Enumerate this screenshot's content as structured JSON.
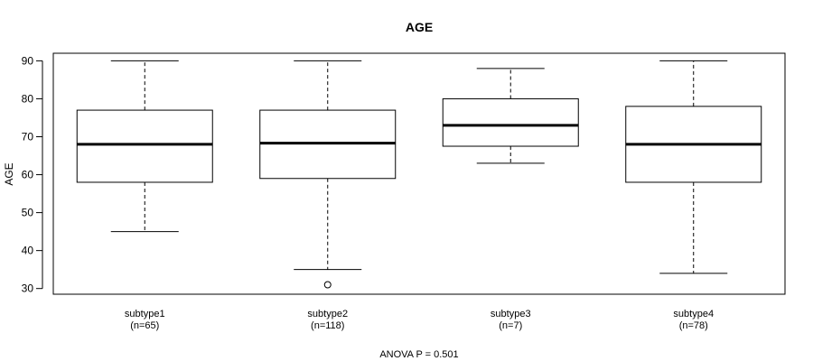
{
  "chart_data": {
    "type": "boxplot",
    "title": "AGE",
    "xlabel": "",
    "ylabel": "AGE",
    "ylim": [
      28.5,
      92
    ],
    "yticks": [
      30,
      40,
      50,
      60,
      70,
      80,
      90
    ],
    "ytick_labels": [
      "30",
      "40",
      "50",
      "60",
      "70",
      "80",
      "90"
    ],
    "footnote": "ANOVA P = 0.501",
    "groups": [
      {
        "name": "subtype1",
        "n_label": "(n=65)",
        "whisker_low": 45,
        "q1": 58,
        "median": 68,
        "q3": 77,
        "whisker_high": 90,
        "outliers": []
      },
      {
        "name": "subtype2",
        "n_label": "(n=118)",
        "whisker_low": 35,
        "q1": 59,
        "median": 68.3,
        "q3": 77,
        "whisker_high": 90,
        "outliers": [
          31
        ]
      },
      {
        "name": "subtype3",
        "n_label": "(n=7)",
        "whisker_low": 63,
        "q1": 67.5,
        "median": 73,
        "q3": 80,
        "whisker_high": 88,
        "outliers": []
      },
      {
        "name": "subtype4",
        "n_label": "(n=78)",
        "whisker_low": 34,
        "q1": 58,
        "median": 68,
        "q3": 78,
        "whisker_high": 90,
        "outliers": []
      }
    ]
  }
}
